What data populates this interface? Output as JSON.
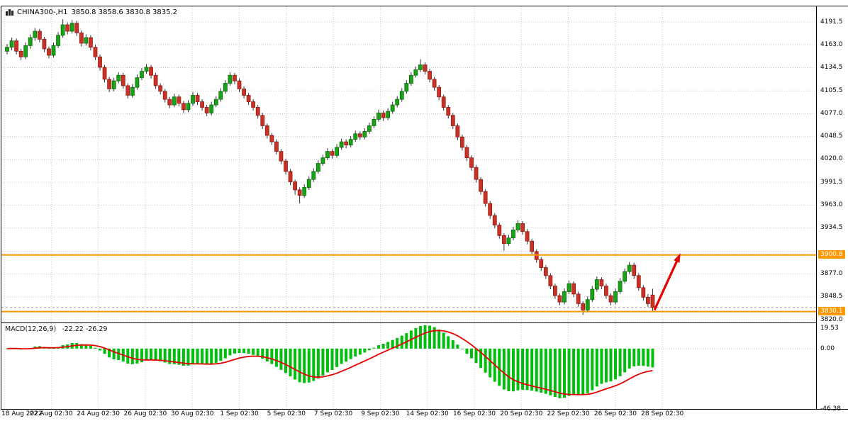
{
  "header": {
    "symbol": "CHINA300-,H1",
    "quote": "3850.8 3858.6 3830.8 3835.2"
  },
  "macd_panel": {
    "name": "MACD(12,26,9)",
    "values": "-22.22 -26.29",
    "max": 19.53,
    "min": -46.38,
    "axis": [
      {
        "v": 19.53,
        "t": "19.53"
      },
      {
        "v": 0,
        "t": "0.00"
      },
      {
        "v": -46.38,
        "t": "-46.38"
      }
    ]
  },
  "colors": {
    "up": "#1aa317",
    "up_border": "#0b6b0b",
    "down": "#cc3126",
    "down_border": "#8c1f17",
    "wick": "#333333",
    "grid": "#c8c8c8",
    "level_line": "#ff9800",
    "badge_bg": "#ff9800",
    "badge_text": "#ffffff",
    "macd_hist": "#00be0c",
    "macd_signal": "#e60000",
    "arrow": "#e60000",
    "price_line": "#999999"
  },
  "chart_data": {
    "type": "candlestick",
    "title": "CHINA300- H1",
    "y_axis": {
      "max": 4211.0,
      "min": 3816.5,
      "gridlines": [
        {
          "p": 4191.5,
          "t": "4191.5"
        },
        {
          "p": 4163.0,
          "t": "4163.0"
        },
        {
          "p": 4134.5,
          "t": "4134.5"
        },
        {
          "p": 4105.5,
          "t": "4105.5"
        },
        {
          "p": 4077.0,
          "t": "4077.0"
        },
        {
          "p": 4048.5,
          "t": "4048.5"
        },
        {
          "p": 4020.0,
          "t": "4020.0"
        },
        {
          "p": 3991.5,
          "t": "3991.5"
        },
        {
          "p": 3963.0,
          "t": "3963.0"
        },
        {
          "p": 3934.5,
          "t": "3934.5"
        },
        {
          "p": 3905.5,
          "t": ""
        },
        {
          "p": 3877.0,
          "t": "3877.0"
        },
        {
          "p": 3848.5,
          "t": "3848.5"
        },
        {
          "p": 3820.0,
          "t": "3820.0"
        }
      ]
    },
    "x_axis": {
      "labels": [
        "18 Aug 2022",
        "22 Aug 02:30",
        "24 Aug 02:30",
        "26 Aug 02:30",
        "30 Aug 02:30",
        "1 Sep 02:30",
        "5 Sep 02:30",
        "7 Sep 02:30",
        "9 Sep 02:30",
        "14 Sep 02:30",
        "16 Sep 02:30",
        "20 Sep 02:30",
        "22 Sep 02:30",
        "26 Sep 02:30",
        "28 Sep 02:30"
      ]
    },
    "levels": [
      {
        "price": 3900.8,
        "label": "3900.8"
      },
      {
        "price": 3830.1,
        "label": "3830.1"
      }
    ],
    "price_line": {
      "price": 3835.2
    },
    "arrow": {
      "from_index": 139.4,
      "from_price": 3832,
      "to_index": 145,
      "to_price": 3903
    },
    "quote": {
      "open": 3850.8,
      "high": 3858.6,
      "low": 3830.8,
      "close": 3835.2
    },
    "candles": [
      [
        4155,
        4164,
        4151,
        4160
      ],
      [
        4160,
        4172,
        4156,
        4168
      ],
      [
        4168,
        4171,
        4151,
        4155
      ],
      [
        4155,
        4158,
        4144,
        4148
      ],
      [
        4148,
        4166,
        4145,
        4162
      ],
      [
        4162,
        4176,
        4158,
        4172
      ],
      [
        4172,
        4184,
        4168,
        4180
      ],
      [
        4180,
        4183,
        4166,
        4170
      ],
      [
        4170,
        4173,
        4154,
        4158
      ],
      [
        4158,
        4161,
        4146,
        4150
      ],
      [
        4150,
        4166,
        4147,
        4162
      ],
      [
        4162,
        4179,
        4159,
        4175
      ],
      [
        4175,
        4195,
        4172,
        4188
      ],
      [
        4188,
        4191,
        4176,
        4180
      ],
      [
        4180,
        4194,
        4177,
        4190
      ],
      [
        4190,
        4193,
        4174,
        4178
      ],
      [
        4178,
        4181,
        4161,
        4165
      ],
      [
        4165,
        4176,
        4162,
        4172
      ],
      [
        4172,
        4175,
        4156,
        4160
      ],
      [
        4160,
        4163,
        4144,
        4148
      ],
      [
        4148,
        4151,
        4131,
        4135
      ],
      [
        4135,
        4138,
        4116,
        4120
      ],
      [
        4120,
        4123,
        4104,
        4108
      ],
      [
        4108,
        4122,
        4105,
        4118
      ],
      [
        4118,
        4129,
        4115,
        4125
      ],
      [
        4125,
        4128,
        4108,
        4112
      ],
      [
        4112,
        4115,
        4096,
        4100
      ],
      [
        4100,
        4114,
        4097,
        4110
      ],
      [
        4110,
        4126,
        4107,
        4122
      ],
      [
        4122,
        4134,
        4119,
        4130
      ],
      [
        4130,
        4139,
        4127,
        4135
      ],
      [
        4135,
        4138,
        4121,
        4125
      ],
      [
        4125,
        4128,
        4108,
        4112
      ],
      [
        4112,
        4115,
        4101,
        4105
      ],
      [
        4105,
        4108,
        4091,
        4095
      ],
      [
        4095,
        4098,
        4084,
        4088
      ],
      [
        4088,
        4102,
        4085,
        4098
      ],
      [
        4098,
        4101,
        4086,
        4090
      ],
      [
        4090,
        4093,
        4078,
        4082
      ],
      [
        4082,
        4094,
        4079,
        4090
      ],
      [
        4090,
        4104,
        4087,
        4100
      ],
      [
        4100,
        4103,
        4088,
        4092
      ],
      [
        4092,
        4095,
        4081,
        4085
      ],
      [
        4085,
        4088,
        4074,
        4078
      ],
      [
        4078,
        4092,
        4075,
        4088
      ],
      [
        4088,
        4099,
        4085,
        4095
      ],
      [
        4095,
        4109,
        4092,
        4105
      ],
      [
        4105,
        4119,
        4102,
        4115
      ],
      [
        4115,
        4129,
        4112,
        4125
      ],
      [
        4125,
        4128,
        4114,
        4118
      ],
      [
        4118,
        4121,
        4104,
        4108
      ],
      [
        4108,
        4111,
        4096,
        4100
      ],
      [
        4100,
        4103,
        4088,
        4092
      ],
      [
        4092,
        4095,
        4081,
        4085
      ],
      [
        4085,
        4088,
        4071,
        4075
      ],
      [
        4075,
        4078,
        4058,
        4062
      ],
      [
        4062,
        4065,
        4046,
        4050
      ],
      [
        4050,
        4053,
        4038,
        4042
      ],
      [
        4042,
        4045,
        4026,
        4030
      ],
      [
        4030,
        4033,
        4014,
        4018
      ],
      [
        4018,
        4021,
        4001,
        4005
      ],
      [
        4005,
        4008,
        3988,
        3992
      ],
      [
        3992,
        3995,
        3976,
        3982
      ],
      [
        3982,
        3985,
        3965,
        3975
      ],
      [
        3975,
        3989,
        3972,
        3985
      ],
      [
        3985,
        3999,
        3982,
        3995
      ],
      [
        3995,
        4009,
        3992,
        4005
      ],
      [
        4005,
        4019,
        4002,
        4015
      ],
      [
        4015,
        4026,
        4012,
        4022
      ],
      [
        4022,
        4034,
        4019,
        4030
      ],
      [
        4030,
        4033,
        4021,
        4025
      ],
      [
        4025,
        4039,
        4022,
        4035
      ],
      [
        4035,
        4046,
        4032,
        4042
      ],
      [
        4042,
        4045,
        4034,
        4038
      ],
      [
        4038,
        4049,
        4035,
        4045
      ],
      [
        4045,
        4056,
        4042,
        4052
      ],
      [
        4052,
        4055,
        4044,
        4048
      ],
      [
        4048,
        4059,
        4045,
        4055
      ],
      [
        4055,
        4066,
        4052,
        4062
      ],
      [
        4062,
        4074,
        4059,
        4070
      ],
      [
        4070,
        4082,
        4067,
        4078
      ],
      [
        4078,
        4081,
        4068,
        4072
      ],
      [
        4072,
        4084,
        4069,
        4080
      ],
      [
        4080,
        4092,
        4077,
        4088
      ],
      [
        4088,
        4099,
        4085,
        4095
      ],
      [
        4095,
        4109,
        4092,
        4105
      ],
      [
        4105,
        4119,
        4102,
        4115
      ],
      [
        4115,
        4129,
        4112,
        4125
      ],
      [
        4125,
        4136,
        4122,
        4132
      ],
      [
        4132,
        4145,
        4129,
        4138
      ],
      [
        4138,
        4141,
        4126,
        4130
      ],
      [
        4130,
        4133,
        4116,
        4120
      ],
      [
        4120,
        4123,
        4106,
        4110
      ],
      [
        4110,
        4113,
        4094,
        4098
      ],
      [
        4098,
        4101,
        4081,
        4085
      ],
      [
        4085,
        4088,
        4071,
        4075
      ],
      [
        4075,
        4078,
        4058,
        4062
      ],
      [
        4062,
        4065,
        4044,
        4048
      ],
      [
        4048,
        4051,
        4031,
        4035
      ],
      [
        4035,
        4038,
        4018,
        4022
      ],
      [
        4022,
        4025,
        4006,
        4010
      ],
      [
        4010,
        4013,
        3991,
        3995
      ],
      [
        3995,
        3998,
        3976,
        3980
      ],
      [
        3980,
        3983,
        3961,
        3965
      ],
      [
        3965,
        3968,
        3946,
        3950
      ],
      [
        3950,
        3953,
        3934,
        3938
      ],
      [
        3938,
        3941,
        3921,
        3925
      ],
      [
        3925,
        3928,
        3906,
        3915
      ],
      [
        3915,
        3926,
        3912,
        3922
      ],
      [
        3922,
        3936,
        3919,
        3932
      ],
      [
        3932,
        3944,
        3929,
        3940
      ],
      [
        3940,
        3943,
        3926,
        3930
      ],
      [
        3930,
        3933,
        3914,
        3918
      ],
      [
        3918,
        3921,
        3901,
        3905
      ],
      [
        3905,
        3908,
        3891,
        3895
      ],
      [
        3895,
        3898,
        3881,
        3885
      ],
      [
        3885,
        3888,
        3871,
        3875
      ],
      [
        3875,
        3878,
        3858,
        3862
      ],
      [
        3862,
        3865,
        3846,
        3850
      ],
      [
        3850,
        3853,
        3838,
        3842
      ],
      [
        3842,
        3859,
        3839,
        3855
      ],
      [
        3855,
        3869,
        3852,
        3865
      ],
      [
        3865,
        3868,
        3848,
        3852
      ],
      [
        3852,
        3855,
        3836,
        3840
      ],
      [
        3840,
        3843,
        3826,
        3832
      ],
      [
        3832,
        3849,
        3829,
        3845
      ],
      [
        3845,
        3862,
        3842,
        3858
      ],
      [
        3858,
        3874,
        3855,
        3870
      ],
      [
        3870,
        3873,
        3858,
        3862
      ],
      [
        3862,
        3865,
        3846,
        3850
      ],
      [
        3850,
        3853,
        3838,
        3842
      ],
      [
        3842,
        3859,
        3839,
        3855
      ],
      [
        3855,
        3872,
        3852,
        3868
      ],
      [
        3868,
        3884,
        3865,
        3880
      ],
      [
        3880,
        3892,
        3877,
        3888
      ],
      [
        3888,
        3891,
        3871,
        3875
      ],
      [
        3875,
        3878,
        3856,
        3860
      ],
      [
        3860,
        3863,
        3844,
        3848
      ],
      [
        3848,
        3852,
        3836,
        3840
      ],
      [
        3850.8,
        3858.6,
        3830.8,
        3835.2
      ]
    ]
  }
}
